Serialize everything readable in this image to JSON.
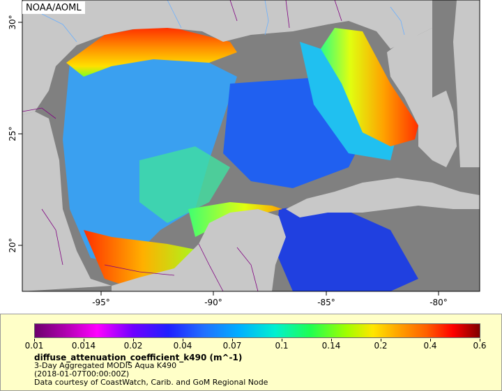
{
  "map": {
    "credit": "NOAA/AOML",
    "longitude_ticks": [
      "-95°",
      "-90°",
      "-85°",
      "-80°"
    ],
    "latitude_ticks": [
      "20°",
      "25°",
      "30°"
    ],
    "extent": {
      "lon_min": -98,
      "lon_max": -79,
      "lat_min": 18,
      "lat_max": 31
    },
    "colors": {
      "land": "#c8c8c8",
      "no_data": "#808080",
      "border": "#800080",
      "river": "#6ab0ff"
    }
  },
  "legend": {
    "colorbar_ticks": [
      "0.01",
      "0.014",
      "0.02",
      "0.04",
      "0.07",
      "0.1",
      "0.14",
      "0.2",
      "0.4",
      "0.6"
    ],
    "variable": "diffuse_attenuation_coefficient_k490 (m^-1)",
    "product": "3-Day Aggregated MODIS Aqua K490",
    "time": "(2018-01-07T00:00:00Z)",
    "source": "Data courtesy of CoastWatch, Carib. and GoM Regional Node"
  }
}
